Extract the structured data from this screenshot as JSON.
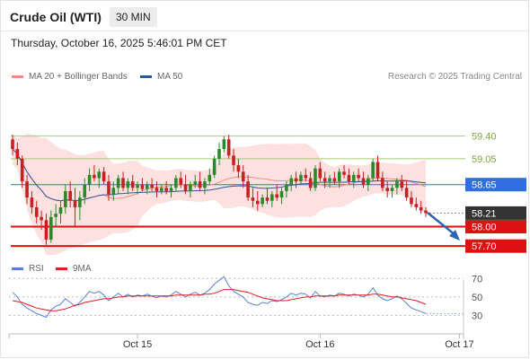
{
  "header": {
    "title": "Crude Oil (WTI)",
    "timeframe": "30 MIN"
  },
  "timestamp": "Thursday, October 16, 2025 5:46:01 PM CET",
  "legend_main": [
    {
      "label": "MA 20 + Bollinger Bands",
      "color": "#f28b82"
    },
    {
      "label": "MA 50",
      "color": "#2e5597"
    }
  ],
  "research": "Research © 2025 Trading Central",
  "legend_rsi": [
    {
      "label": "RSI",
      "color": "#5b7fd6"
    },
    {
      "label": "9MA",
      "color": "#e02020"
    }
  ],
  "colors": {
    "bull": "#2a8a2a",
    "bear": "#c62020",
    "resistance": "#a8cc7a",
    "pivot": "#2f6fe0",
    "support": "#dd1111",
    "current": "#333333",
    "band": "#fde0e0"
  },
  "chart_data": [
    {
      "type": "candlestick",
      "title": "Crude Oil (WTI)",
      "ylim": [
        57.55,
        59.7
      ],
      "x_tick_labels": [
        "Oct 15",
        "Oct 16",
        "Oct 17"
      ],
      "x_ticks_at_bar": [
        26,
        64,
        93
      ],
      "levels": [
        {
          "value": 59.4,
          "label": "59.40",
          "kind": "resistance"
        },
        {
          "value": 59.05,
          "label": "59.05",
          "kind": "resistance"
        },
        {
          "value": 58.65,
          "label": "58.65",
          "kind": "pivot"
        },
        {
          "value": 58.21,
          "label": "58.21",
          "kind": "current"
        },
        {
          "value": 58.0,
          "label": "58.00",
          "kind": "support"
        },
        {
          "value": 57.7,
          "label": "57.70",
          "kind": "support"
        }
      ],
      "ohlc": [
        [
          59.35,
          59.42,
          59.1,
          59.2
        ],
        [
          59.2,
          59.3,
          58.95,
          59.05
        ],
        [
          59.05,
          59.1,
          58.6,
          58.7
        ],
        [
          58.7,
          58.8,
          58.35,
          58.45
        ],
        [
          58.45,
          58.55,
          58.2,
          58.3
        ],
        [
          58.3,
          58.4,
          58.05,
          58.15
        ],
        [
          58.15,
          58.25,
          57.95,
          58.1
        ],
        [
          58.1,
          58.2,
          57.72,
          57.8
        ],
        [
          57.8,
          58.25,
          57.75,
          58.15
        ],
        [
          58.15,
          58.35,
          58.0,
          58.2
        ],
        [
          58.2,
          58.4,
          58.05,
          58.3
        ],
        [
          58.3,
          58.65,
          58.2,
          58.55
        ],
        [
          58.55,
          58.7,
          58.3,
          58.4
        ],
        [
          58.4,
          58.6,
          58.0,
          58.3
        ],
        [
          58.3,
          58.55,
          58.1,
          58.45
        ],
        [
          58.45,
          58.75,
          58.35,
          58.65
        ],
        [
          58.65,
          58.9,
          58.55,
          58.8
        ],
        [
          58.8,
          58.95,
          58.7,
          58.75
        ],
        [
          58.75,
          58.9,
          58.6,
          58.85
        ],
        [
          58.85,
          58.92,
          58.65,
          58.7
        ],
        [
          58.7,
          58.8,
          58.4,
          58.5
        ],
        [
          58.5,
          58.7,
          58.4,
          58.6
        ],
        [
          58.6,
          58.8,
          58.5,
          58.75
        ],
        [
          58.75,
          58.85,
          58.55,
          58.6
        ],
        [
          58.6,
          58.75,
          58.5,
          58.7
        ],
        [
          58.7,
          58.8,
          58.55,
          58.6
        ],
        [
          58.6,
          58.7,
          58.5,
          58.65
        ],
        [
          58.65,
          58.75,
          58.55,
          58.58
        ],
        [
          58.58,
          58.7,
          58.5,
          58.65
        ],
        [
          58.65,
          58.75,
          58.55,
          58.6
        ],
        [
          58.6,
          58.7,
          58.45,
          58.55
        ],
        [
          58.55,
          58.65,
          58.5,
          58.6
        ],
        [
          58.6,
          58.7,
          58.5,
          58.55
        ],
        [
          58.55,
          58.65,
          58.45,
          58.6
        ],
        [
          58.6,
          58.8,
          58.55,
          58.75
        ],
        [
          58.75,
          58.85,
          58.6,
          58.65
        ],
        [
          58.65,
          58.8,
          58.5,
          58.55
        ],
        [
          58.55,
          58.7,
          58.45,
          58.65
        ],
        [
          58.65,
          58.8,
          58.6,
          58.7
        ],
        [
          58.7,
          58.85,
          58.55,
          58.6
        ],
        [
          58.6,
          58.75,
          58.5,
          58.7
        ],
        [
          58.7,
          58.9,
          58.65,
          58.8
        ],
        [
          58.8,
          59.1,
          58.75,
          59.05
        ],
        [
          59.05,
          59.3,
          58.95,
          59.2
        ],
        [
          59.2,
          59.4,
          59.15,
          59.35
        ],
        [
          59.35,
          59.42,
          59.05,
          59.1
        ],
        [
          59.1,
          59.2,
          58.85,
          58.95
        ],
        [
          58.95,
          59.05,
          58.75,
          58.85
        ],
        [
          58.85,
          58.95,
          58.6,
          58.7
        ],
        [
          58.7,
          58.8,
          58.4,
          58.45
        ],
        [
          58.45,
          58.6,
          58.3,
          58.4
        ],
        [
          58.4,
          58.55,
          58.25,
          58.35
        ],
        [
          58.35,
          58.5,
          58.3,
          58.45
        ],
        [
          58.45,
          58.6,
          58.35,
          58.4
        ],
        [
          58.4,
          58.55,
          58.3,
          58.5
        ],
        [
          58.5,
          58.65,
          58.4,
          58.45
        ],
        [
          58.45,
          58.6,
          58.35,
          58.55
        ],
        [
          58.55,
          58.7,
          58.45,
          58.65
        ],
        [
          58.65,
          58.8,
          58.55,
          58.75
        ],
        [
          58.75,
          58.85,
          58.6,
          58.7
        ],
        [
          58.7,
          58.85,
          58.65,
          58.8
        ],
        [
          58.8,
          58.9,
          58.7,
          58.75
        ],
        [
          58.75,
          58.85,
          58.55,
          58.6
        ],
        [
          58.6,
          58.95,
          58.55,
          58.9
        ],
        [
          58.9,
          59.0,
          58.7,
          58.75
        ],
        [
          58.75,
          58.85,
          58.6,
          58.7
        ],
        [
          58.7,
          58.8,
          58.6,
          58.75
        ],
        [
          58.75,
          58.85,
          58.65,
          58.7
        ],
        [
          58.7,
          58.9,
          58.6,
          58.85
        ],
        [
          58.85,
          58.95,
          58.75,
          58.8
        ],
        [
          58.8,
          58.9,
          58.65,
          58.7
        ],
        [
          58.7,
          58.85,
          58.6,
          58.8
        ],
        [
          58.8,
          58.9,
          58.7,
          58.75
        ],
        [
          58.75,
          58.85,
          58.6,
          58.65
        ],
        [
          58.65,
          58.8,
          58.55,
          58.75
        ],
        [
          58.75,
          59.05,
          58.7,
          59.0
        ],
        [
          59.0,
          59.1,
          58.7,
          58.75
        ],
        [
          58.75,
          58.85,
          58.55,
          58.6
        ],
        [
          58.6,
          58.7,
          58.45,
          58.55
        ],
        [
          58.55,
          58.65,
          58.45,
          58.6
        ],
        [
          58.6,
          58.75,
          58.5,
          58.7
        ],
        [
          58.7,
          58.8,
          58.55,
          58.6
        ],
        [
          58.6,
          58.7,
          58.4,
          58.45
        ],
        [
          58.45,
          58.55,
          58.3,
          58.35
        ],
        [
          58.35,
          58.45,
          58.25,
          58.3
        ],
        [
          58.3,
          58.4,
          58.2,
          58.25
        ],
        [
          58.25,
          58.3,
          58.15,
          58.21
        ]
      ]
    },
    {
      "type": "line",
      "title": "RSI",
      "ylim": [
        10,
        80
      ],
      "y_ticks": [
        30,
        50,
        70
      ],
      "series": [
        {
          "name": "RSI",
          "values": [
            55,
            50,
            42,
            38,
            35,
            32,
            30,
            28,
            36,
            40,
            42,
            48,
            44,
            40,
            44,
            50,
            56,
            54,
            56,
            52,
            46,
            50,
            54,
            50,
            53,
            50,
            52,
            51,
            53,
            51,
            49,
            51,
            50,
            52,
            56,
            53,
            50,
            53,
            55,
            52,
            54,
            58,
            64,
            68,
            72,
            62,
            56,
            53,
            50,
            44,
            42,
            41,
            44,
            43,
            46,
            45,
            47,
            50,
            54,
            52,
            54,
            53,
            49,
            56,
            51,
            50,
            52,
            51,
            54,
            53,
            51,
            53,
            52,
            50,
            53,
            60,
            52,
            48,
            46,
            48,
            51,
            48,
            43,
            38,
            36,
            34,
            32
          ]
        },
        {
          "name": "9MA",
          "values": [
            46,
            45,
            44,
            42,
            40,
            38,
            37,
            36,
            35,
            35,
            36,
            37,
            39,
            41,
            42,
            44,
            45,
            46,
            47,
            48,
            48,
            49,
            50,
            50,
            51,
            51,
            51,
            51,
            51,
            51,
            51,
            51,
            51,
            51,
            52,
            52,
            52,
            52,
            52,
            52,
            53,
            53,
            54,
            56,
            58,
            58,
            58,
            57,
            56,
            55,
            53,
            51,
            49,
            48,
            47,
            46,
            46,
            46,
            47,
            48,
            49,
            50,
            50,
            51,
            51,
            51,
            51,
            51,
            52,
            52,
            52,
            52,
            52,
            52,
            52,
            53,
            53,
            52,
            51,
            50,
            50,
            49,
            48,
            47,
            46,
            44,
            42
          ]
        }
      ]
    }
  ]
}
